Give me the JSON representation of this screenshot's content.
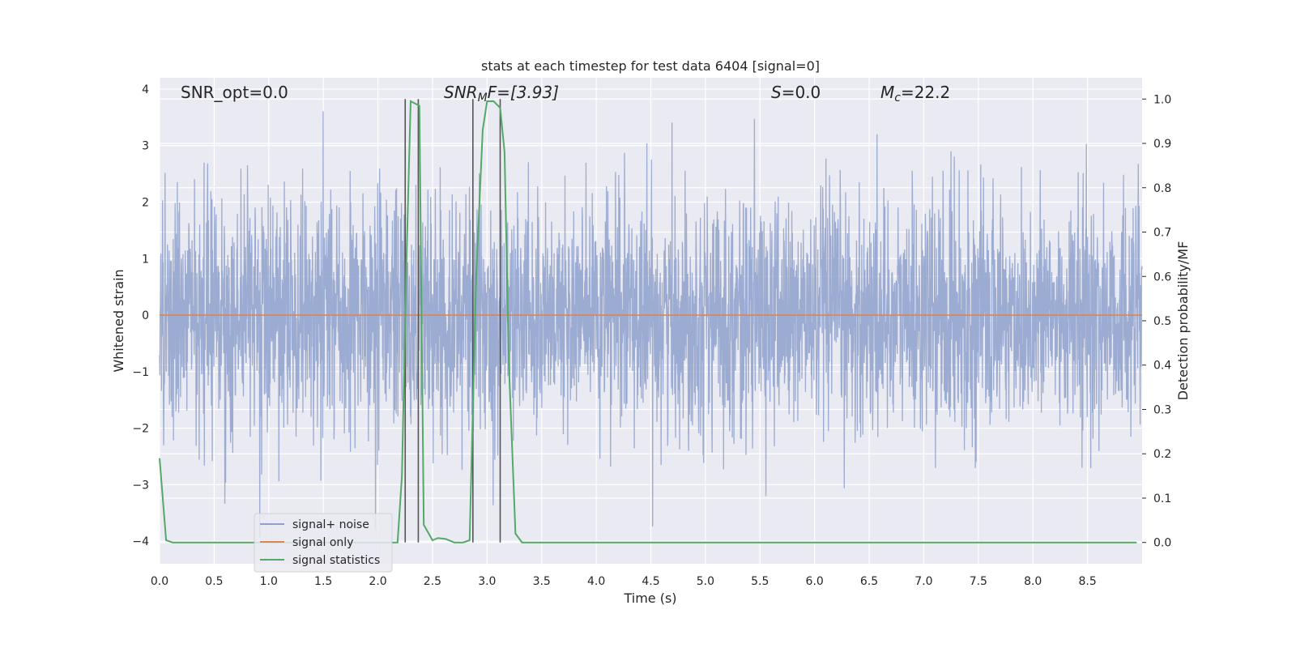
{
  "chart_data": {
    "type": "line",
    "title": "stats at each timestep for test data 6404 [signal=0]",
    "xlabel": "Time (s)",
    "ylabel": "Whitened strain",
    "y2label": "Detection probability/MF",
    "xlim": [
      0.0,
      9.0
    ],
    "ylim": [
      -4.4,
      4.2
    ],
    "y2lim": [
      -0.048,
      1.048
    ],
    "xticks": [
      "0.0",
      "0.5",
      "1.0",
      "1.5",
      "2.0",
      "2.5",
      "3.0",
      "3.5",
      "4.0",
      "4.5",
      "5.0",
      "5.5",
      "6.0",
      "6.5",
      "7.0",
      "7.5",
      "8.0",
      "8.5"
    ],
    "yticks": [
      "4",
      "3",
      "2",
      "1",
      "0",
      "−1",
      "−2",
      "−3",
      "−4"
    ],
    "y2ticks": [
      "1.0",
      "0.9",
      "0.8",
      "0.7",
      "0.6",
      "0.5",
      "0.4",
      "0.3",
      "0.2",
      "0.1",
      "0.0"
    ],
    "grid": true,
    "legend_placement": "lower-left",
    "annotations": {
      "snr_opt": "SNR_opt=0.0",
      "snr_mf_label": "SNR",
      "snr_mf_sub": "M",
      "snr_mf_suffix": "F=[3.93]",
      "s_label": "S",
      "s_value": "=0.0",
      "mc_label": "M",
      "mc_sub": "c",
      "mc_value": "=22.2"
    },
    "series": [
      {
        "name": "signal+ noise",
        "color": "#8da0cb",
        "description": "whitened strain noise, roughly Gaussian, sigma ~1, range about -4 to 3.9"
      },
      {
        "name": "signal only",
        "color": "#dd8452",
        "values_constant": 0.0
      },
      {
        "name": "signal statistics",
        "color": "#55a868",
        "x": [
          0.0,
          0.06,
          0.12,
          0.2,
          0.5,
          1.0,
          1.5,
          2.0,
          2.18,
          2.22,
          2.26,
          2.3,
          2.34,
          2.38,
          2.42,
          2.5,
          2.55,
          2.62,
          2.7,
          2.78,
          2.84,
          2.9,
          2.96,
          3.0,
          3.06,
          3.12,
          3.16,
          3.2,
          3.26,
          3.32,
          3.4,
          4.0,
          5.0,
          6.0,
          7.0,
          8.0,
          8.95
        ],
        "values": [
          0.19,
          0.005,
          0.0,
          0.0,
          0.0,
          0.0,
          0.0,
          0.0,
          0.0,
          0.15,
          0.62,
          0.995,
          0.99,
          0.985,
          0.04,
          0.005,
          0.01,
          0.008,
          0.0,
          0.0,
          0.005,
          0.6,
          0.93,
          0.995,
          0.995,
          0.98,
          0.88,
          0.4,
          0.02,
          0.0,
          0.0,
          0.0,
          0.0,
          0.0,
          0.0,
          0.0,
          0.0
        ]
      }
    ],
    "vertical_lines_x": [
      2.25,
      2.37,
      2.87,
      3.12
    ],
    "vertical_line_color": "#555555"
  }
}
